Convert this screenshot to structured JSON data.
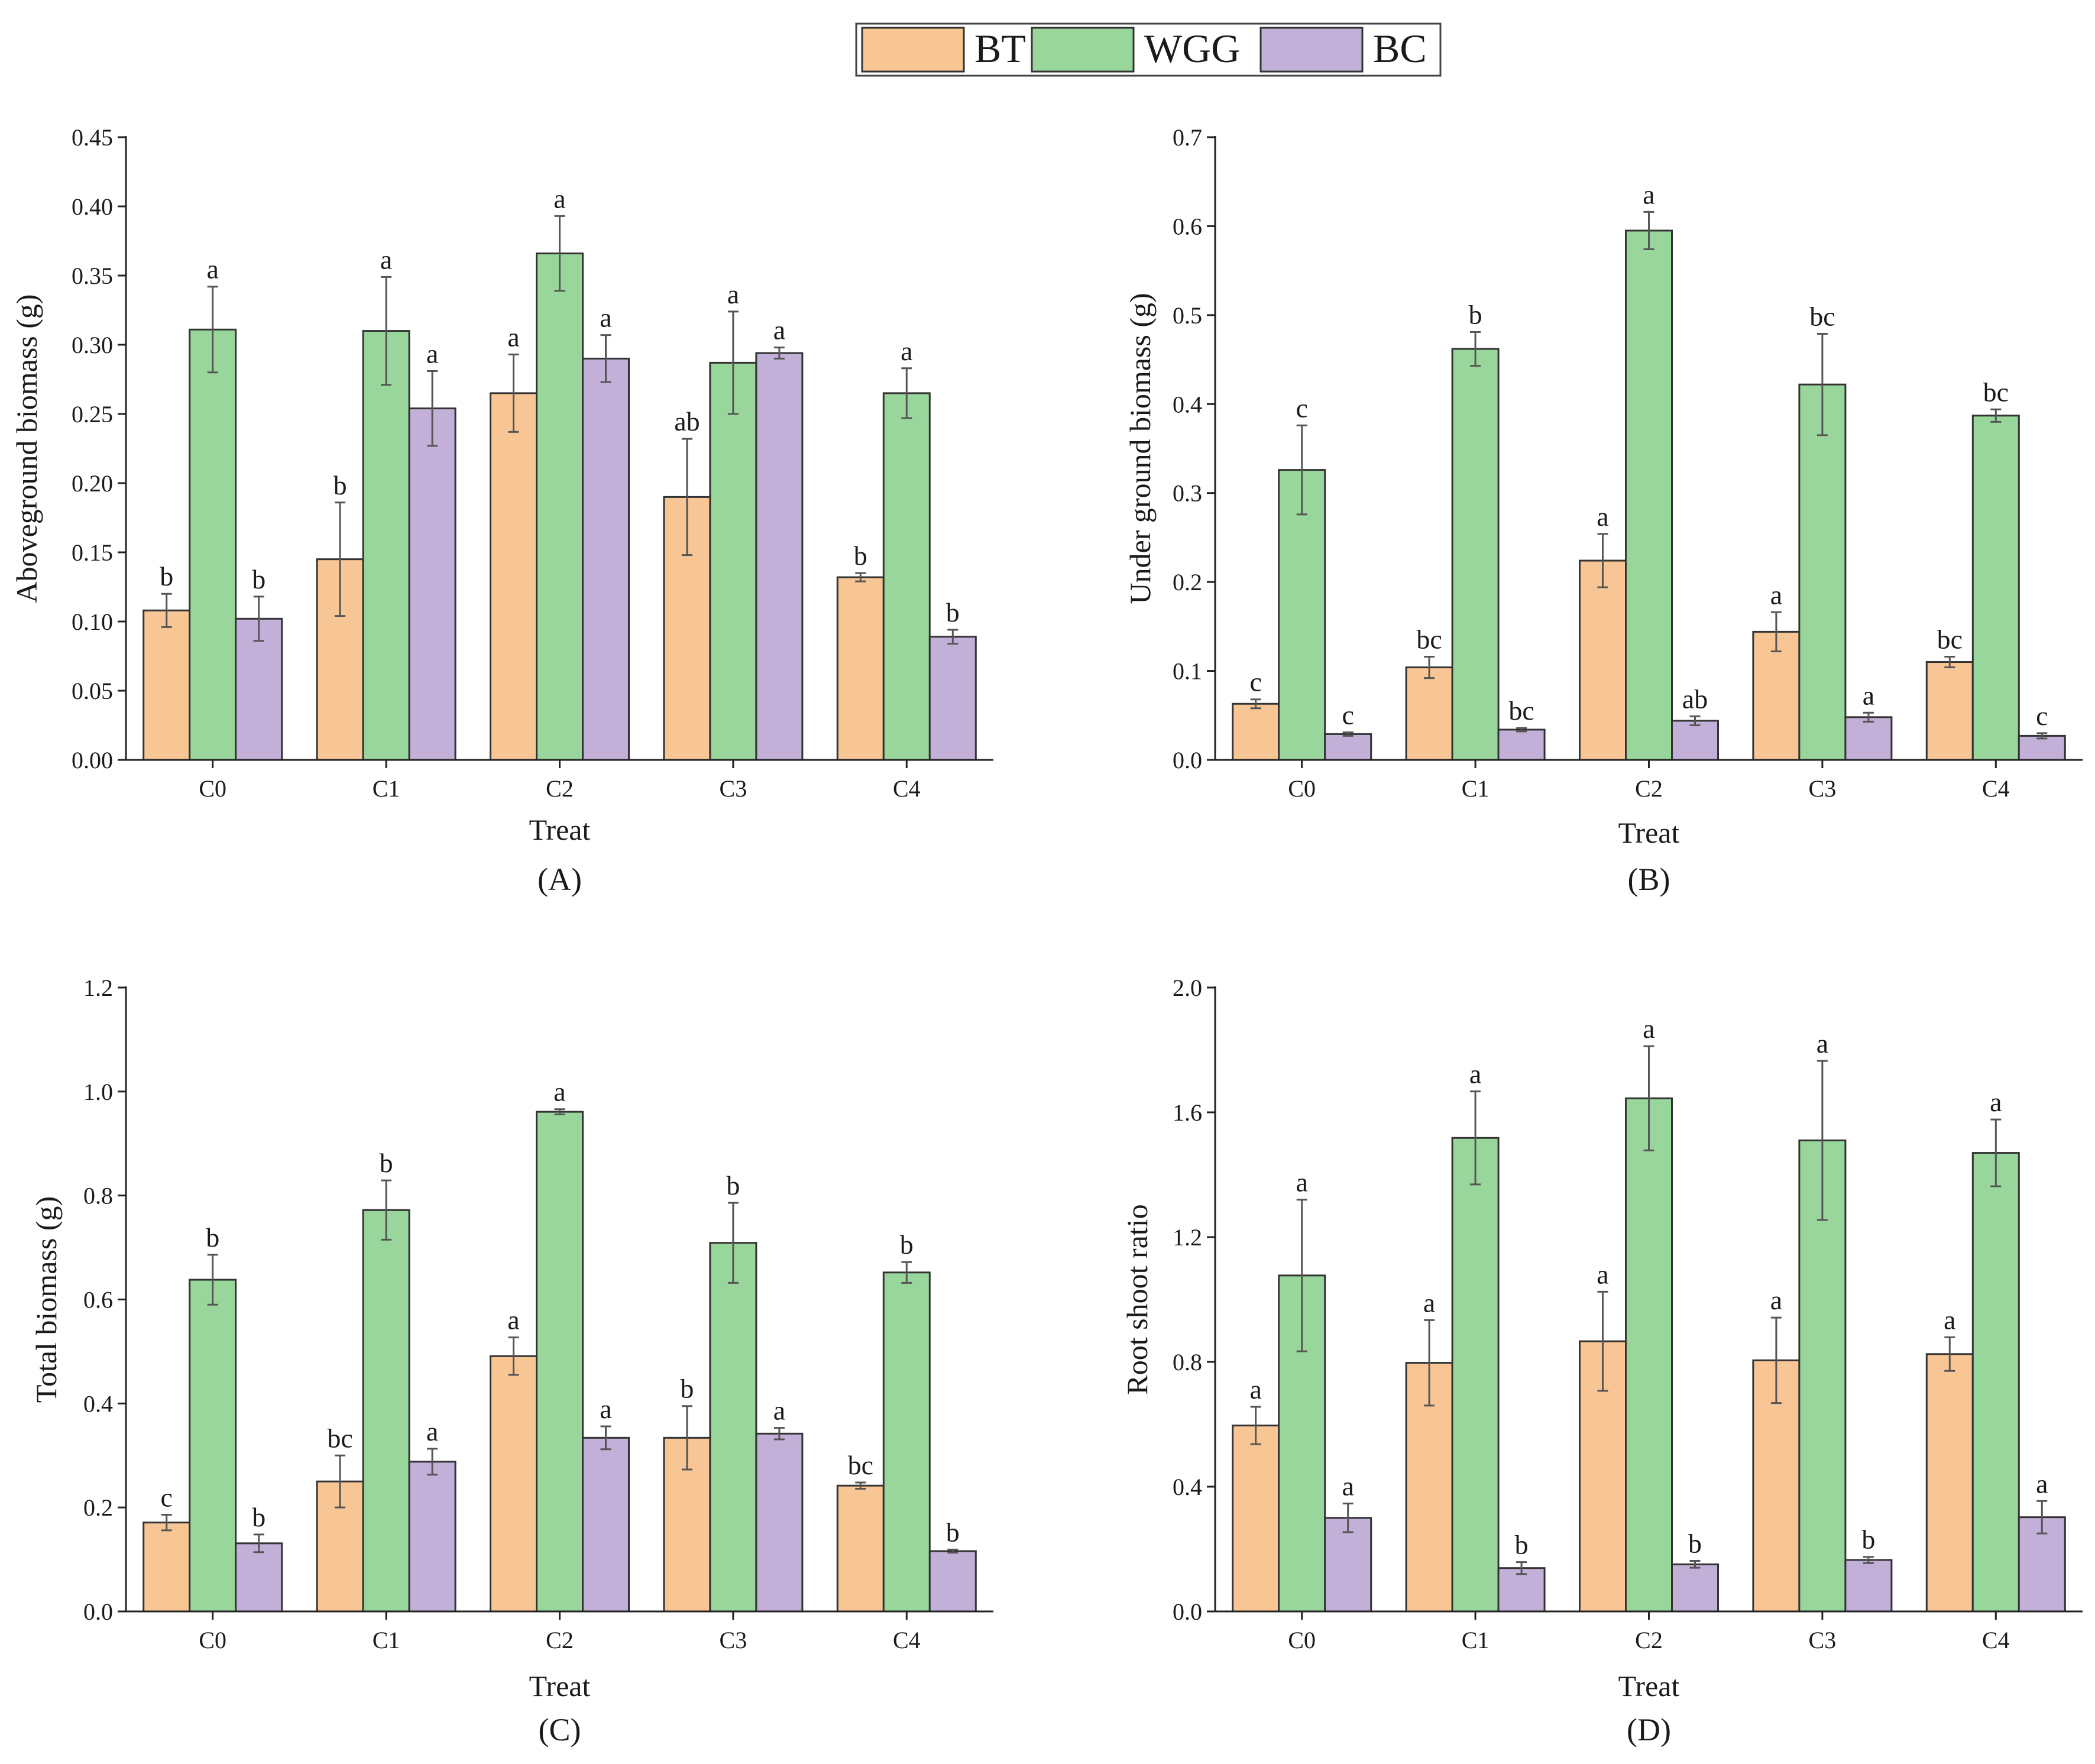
{
  "legend": {
    "entries": [
      {
        "label": "BT",
        "color": "#f8c594"
      },
      {
        "label": "WGG",
        "color": "#99d69b"
      },
      {
        "label": "BC",
        "color": "#c2b0d8"
      }
    ]
  },
  "chart_data": [
    {
      "type": "bar",
      "panel_label": "(A)",
      "xlabel": "Treat",
      "ylabel": "Aboveground biomass (g)",
      "categories": [
        "C0",
        "C1",
        "C2",
        "C3",
        "C4"
      ],
      "ylim": [
        0,
        0.45
      ],
      "yticks": [
        "0.00",
        "0.05",
        "0.10",
        "0.15",
        "0.20",
        "0.25",
        "0.30",
        "0.35",
        "0.40",
        "0.45"
      ],
      "series": [
        {
          "name": "BT",
          "values": [
            0.108,
            0.145,
            0.265,
            0.19,
            0.132
          ],
          "errors": [
            0.012,
            0.041,
            0.028,
            0.042,
            0.003
          ],
          "letters": [
            "b",
            "b",
            "a",
            "ab",
            "b"
          ]
        },
        {
          "name": "WGG",
          "values": [
            0.311,
            0.31,
            0.366,
            0.287,
            0.265
          ],
          "errors": [
            0.031,
            0.039,
            0.027,
            0.037,
            0.018
          ],
          "letters": [
            "a",
            "a",
            "a",
            "a",
            "a"
          ]
        },
        {
          "name": "BC",
          "values": [
            0.102,
            0.254,
            0.29,
            0.294,
            0.089
          ],
          "errors": [
            0.016,
            0.027,
            0.017,
            0.004,
            0.005
          ],
          "letters": [
            "b",
            "a",
            "a",
            "a",
            "b"
          ]
        }
      ]
    },
    {
      "type": "bar",
      "panel_label": "(B)",
      "xlabel": "Treat",
      "ylabel": "Under ground biomass (g)",
      "categories": [
        "C0",
        "C1",
        "C2",
        "C3",
        "C4"
      ],
      "ylim": [
        0,
        0.7
      ],
      "yticks": [
        "0.0",
        "0.1",
        "0.2",
        "0.3",
        "0.4",
        "0.5",
        "0.6",
        "0.7"
      ],
      "series": [
        {
          "name": "BT",
          "values": [
            0.063,
            0.104,
            0.224,
            0.144,
            0.11
          ],
          "errors": [
            0.005,
            0.012,
            0.03,
            0.022,
            0.006
          ],
          "letters": [
            "c",
            "bc",
            "a",
            "a",
            "bc"
          ]
        },
        {
          "name": "WGG",
          "values": [
            0.326,
            0.462,
            0.595,
            0.422,
            0.387
          ],
          "errors": [
            0.05,
            0.019,
            0.021,
            0.057,
            0.007
          ],
          "letters": [
            "c",
            "b",
            "a",
            "bc",
            "bc"
          ]
        },
        {
          "name": "BC",
          "values": [
            0.029,
            0.034,
            0.044,
            0.048,
            0.027
          ],
          "errors": [
            0.002,
            0.002,
            0.005,
            0.005,
            0.003
          ],
          "letters": [
            "c",
            "bc",
            "ab",
            "a",
            "c"
          ]
        }
      ]
    },
    {
      "type": "bar",
      "panel_label": "(C)",
      "xlabel": "Treat",
      "ylabel": "Total biomass (g)",
      "categories": [
        "C0",
        "C1",
        "C2",
        "C3",
        "C4"
      ],
      "ylim": [
        0,
        1.2
      ],
      "yticks": [
        "0.0",
        "0.2",
        "0.4",
        "0.6",
        "0.8",
        "1.0",
        "1.2"
      ],
      "series": [
        {
          "name": "BT",
          "values": [
            0.171,
            0.25,
            0.491,
            0.334,
            0.242
          ],
          "errors": [
            0.015,
            0.05,
            0.036,
            0.061,
            0.006
          ],
          "letters": [
            "c",
            "bc",
            "a",
            "b",
            "bc"
          ]
        },
        {
          "name": "WGG",
          "values": [
            0.638,
            0.772,
            0.961,
            0.709,
            0.652
          ],
          "errors": [
            0.048,
            0.057,
            0.005,
            0.077,
            0.02
          ],
          "letters": [
            "b",
            "b",
            "a",
            "b",
            "b"
          ]
        },
        {
          "name": "BC",
          "values": [
            0.131,
            0.288,
            0.334,
            0.342,
            0.116
          ],
          "errors": [
            0.017,
            0.025,
            0.022,
            0.011,
            0.003
          ],
          "letters": [
            "b",
            "a",
            "a",
            "a",
            "b"
          ]
        }
      ]
    },
    {
      "type": "bar",
      "panel_label": "(D)",
      "xlabel": "Treat",
      "ylabel": "Root shoot ratio",
      "categories": [
        "C0",
        "C1",
        "C2",
        "C3",
        "C4"
      ],
      "ylim": [
        0,
        2.0
      ],
      "yticks": [
        "0.0",
        "0.4",
        "0.8",
        "1.2",
        "1.6",
        "2.0"
      ],
      "series": [
        {
          "name": "BT",
          "values": [
            0.596,
            0.797,
            0.866,
            0.805,
            0.825
          ],
          "errors": [
            0.06,
            0.137,
            0.159,
            0.137,
            0.054
          ],
          "letters": [
            "a",
            "a",
            "a",
            "a",
            "a"
          ]
        },
        {
          "name": "WGG",
          "values": [
            1.077,
            1.518,
            1.645,
            1.51,
            1.47
          ],
          "errors": [
            0.243,
            0.149,
            0.167,
            0.255,
            0.107
          ],
          "letters": [
            "a",
            "a",
            "a",
            "a",
            "a"
          ]
        },
        {
          "name": "BC",
          "values": [
            0.3,
            0.139,
            0.151,
            0.165,
            0.302
          ],
          "errors": [
            0.046,
            0.019,
            0.011,
            0.01,
            0.052
          ],
          "letters": [
            "a",
            "b",
            "b",
            "b",
            "a"
          ]
        }
      ]
    }
  ]
}
